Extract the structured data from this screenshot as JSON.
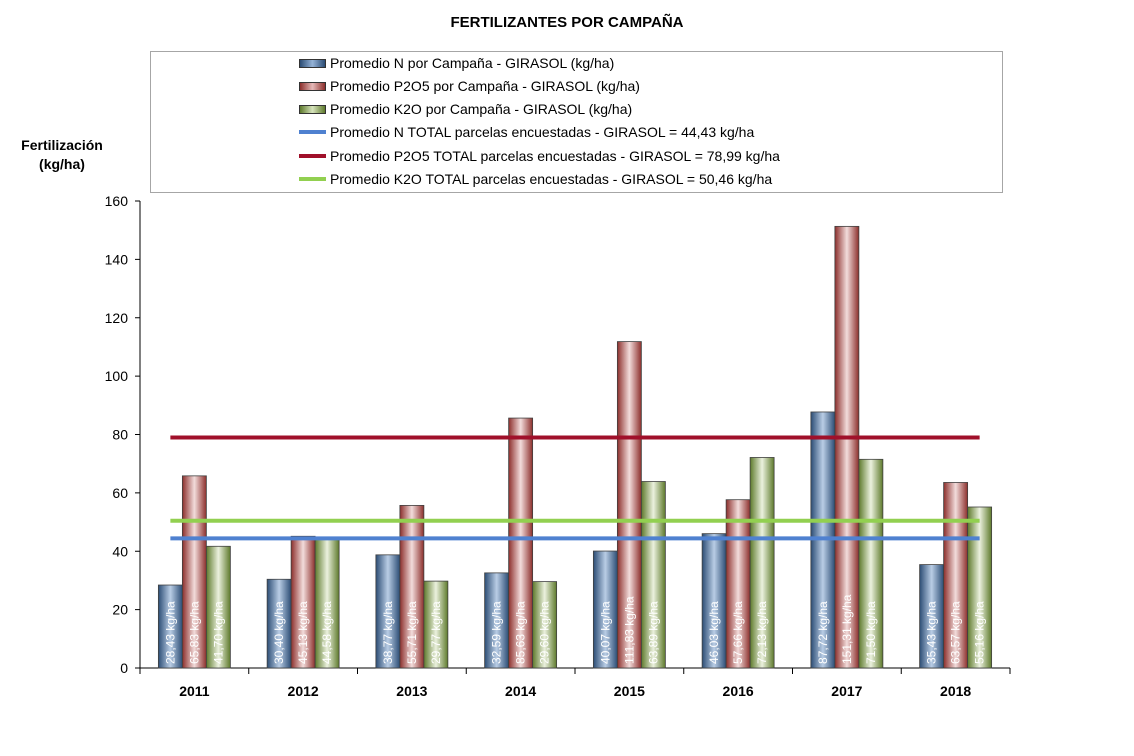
{
  "title": "FERTILIZANTES POR CAMPAÑA",
  "ylabel_line1": "Fertilización",
  "ylabel_line2": "(kg/ha)",
  "legend": [
    {
      "label": "Promedio N por Campaña - GIRASOL (kg/ha)",
      "kind": "bar",
      "color": "#4f81bd"
    },
    {
      "label": "Promedio P2O5 por Campaña - GIRASOL (kg/ha)",
      "kind": "bar",
      "color": "#c0504d"
    },
    {
      "label": "Promedio K2O por Campaña - GIRASOL (kg/ha)",
      "kind": "bar",
      "color": "#9bbb59"
    },
    {
      "label": "Promedio N TOTAL parcelas encuestadas - GIRASOL = 44,43 kg/ha",
      "kind": "line",
      "color": "#4f81d0"
    },
    {
      "label": "Promedio P2O5 TOTAL parcelas encuestadas - GIRASOL = 78,99 kg/ha",
      "kind": "line",
      "color": "#a0102a"
    },
    {
      "label": "Promedio K2O TOTAL parcelas encuestadas - GIRASOL  = 50,46 kg/ha",
      "kind": "line",
      "color": "#92d050"
    }
  ],
  "chart_data": {
    "type": "bar",
    "title": "FERTILIZANTES POR CAMPAÑA",
    "ylabel": "Fertilización (kg/ha)",
    "xlabel": "",
    "ylim": [
      0,
      160
    ],
    "yticks": [
      0,
      20,
      40,
      60,
      80,
      100,
      120,
      140,
      160
    ],
    "grid": false,
    "legend_position": "top",
    "categories": [
      "2011",
      "2012",
      "2013",
      "2014",
      "2015",
      "2016",
      "2017",
      "2018"
    ],
    "series": [
      {
        "name": "Promedio N por Campaña - GIRASOL (kg/ha)",
        "color": "#4f81bd",
        "values": [
          28.43,
          30.4,
          38.77,
          32.59,
          40.07,
          46.03,
          87.72,
          35.43
        ],
        "labels": [
          "28,43 kg/ha",
          "30,40 kg/ha",
          "38,77 kg/ha",
          "32,59 kg/ha",
          "40,07 kg/ha",
          "46,03 kg/ha",
          "87,72 kg/ha",
          "35,43 kg/ha"
        ]
      },
      {
        "name": "Promedio P2O5 por Campaña - GIRASOL (kg/ha)",
        "color": "#c0504d",
        "values": [
          65.83,
          45.13,
          55.71,
          85.63,
          111.83,
          57.66,
          151.31,
          63.57
        ],
        "labels": [
          "65,83 kg/ha",
          "45,13 kg/ha",
          "55,71 kg/ha",
          "85,63 kg/ha",
          "111,83 kg/ha",
          "57,66 kg/ha",
          "151,31 kg/ha",
          "63,57 kg/ha"
        ]
      },
      {
        "name": "Promedio K2O por Campaña - GIRASOL (kg/ha)",
        "color": "#9bbb59",
        "values": [
          41.7,
          44.58,
          29.77,
          29.6,
          63.89,
          72.13,
          71.5,
          55.16
        ],
        "labels": [
          "41,70 kg/ha",
          "44,58 kg/ha",
          "29,77 kg/ha",
          "29,60 kg/ha",
          "63,89 kg/ha",
          "72,13 kg/ha",
          "71,50 kg/ha",
          "55,16 kg/ha"
        ]
      }
    ],
    "reference_lines": [
      {
        "name": "Promedio N TOTAL parcelas encuestadas - GIRASOL = 44,43 kg/ha",
        "value": 44.43,
        "color": "#4f81d0"
      },
      {
        "name": "Promedio P2O5 TOTAL parcelas encuestadas - GIRASOL = 78,99 kg/ha",
        "value": 78.99,
        "color": "#a0102a"
      },
      {
        "name": "Promedio K2O TOTAL parcelas encuestadas - GIRASOL  = 50,46 kg/ha",
        "value": 50.46,
        "color": "#92d050"
      }
    ]
  }
}
